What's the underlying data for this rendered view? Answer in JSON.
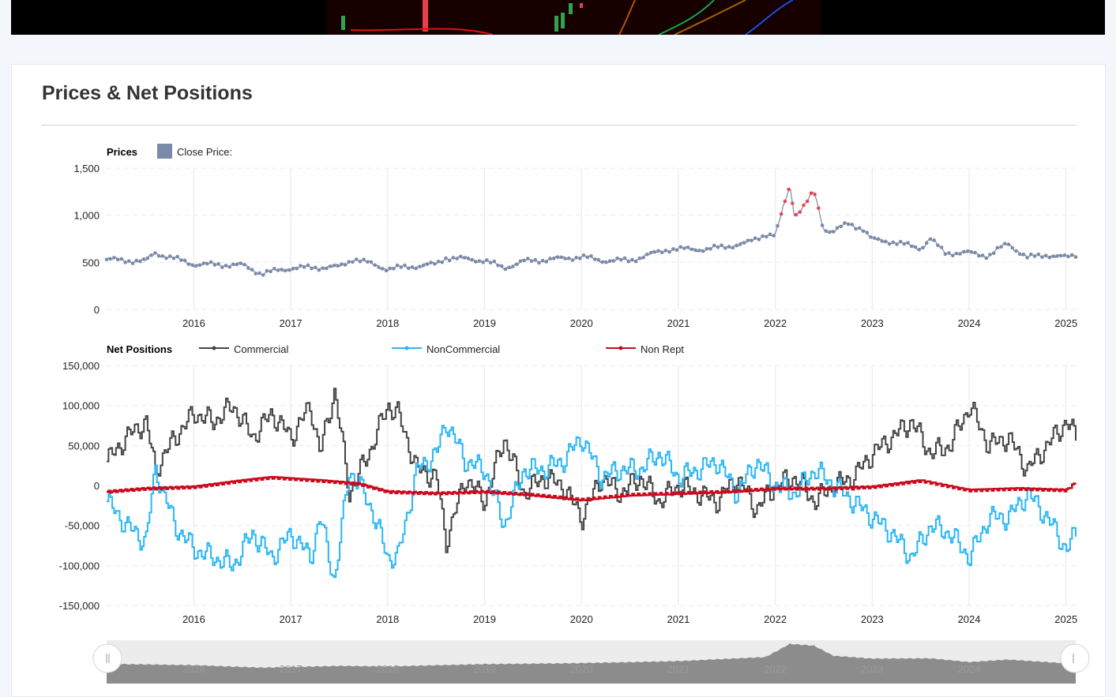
{
  "page": {
    "title": "Prices & Net Positions"
  },
  "colors": {
    "price": "#7b8aa8",
    "price_spike": "#e8474f",
    "commercial": "#444444",
    "noncommercial": "#29b6f6",
    "nonrept": "#cc0a1e",
    "grid": "#ebebeb",
    "navigator_fill": "#8c8c8c"
  },
  "chart_data": [
    {
      "type": "line",
      "title": "Prices",
      "legend": [
        "Close Price:"
      ],
      "legend_position": "top-left",
      "x_ticks": [
        "2016",
        "2017",
        "2018",
        "2019",
        "2020",
        "2021",
        "2022",
        "2023",
        "2024",
        "2025"
      ],
      "y_ticks": [
        "1,500",
        "1,000",
        "500",
        "0"
      ],
      "ylim": [
        0,
        1500
      ],
      "xlim": [
        2015.1,
        2025.1
      ],
      "grid": true,
      "series": [
        {
          "name": "Close Price:",
          "x": [
            2015.1,
            2015.5,
            2015.6,
            2016.0,
            2016.5,
            2016.7,
            2017.0,
            2017.5,
            2017.65,
            2018.0,
            2018.5,
            2018.6,
            2019.0,
            2019.2,
            2019.4,
            2019.8,
            2020.0,
            2020.2,
            2020.5,
            2020.9,
            2021.0,
            2021.3,
            2021.7,
            2021.9,
            2022.0,
            2022.15,
            2022.2,
            2022.3,
            2022.4,
            2022.5,
            2022.6,
            2022.75,
            2022.9,
            2023.0,
            2023.2,
            2023.5,
            2023.6,
            2023.75,
            2024.0,
            2024.2,
            2024.4,
            2024.6,
            2024.8,
            2025.0,
            2025.1
          ],
          "values": [
            530,
            510,
            600,
            480,
            470,
            380,
            440,
            450,
            540,
            430,
            480,
            550,
            520,
            440,
            510,
            540,
            560,
            520,
            520,
            640,
            640,
            640,
            700,
            800,
            780,
            1320,
            1000,
            1100,
            1250,
            850,
            830,
            910,
            860,
            740,
            720,
            650,
            750,
            600,
            600,
            570,
            700,
            550,
            580,
            550,
            580
          ]
        }
      ]
    },
    {
      "type": "line",
      "title": "Net Positions",
      "legend": [
        "Commercial",
        "NonCommercial",
        "Non Rept"
      ],
      "legend_position": "top-left",
      "x_ticks": [
        "2016",
        "2017",
        "2018",
        "2019",
        "2020",
        "2021",
        "2022",
        "2023",
        "2024",
        "2025"
      ],
      "y_ticks": [
        "150,000",
        "100,000",
        "50,000",
        "0",
        "-50,000",
        "-100,000",
        "-150,000"
      ],
      "ylim": [
        -150000,
        150000
      ],
      "xlim": [
        2015.1,
        2025.1
      ],
      "grid": true,
      "series": [
        {
          "name": "Commercial",
          "x": [
            2015.1,
            2015.3,
            2015.5,
            2015.6,
            2015.8,
            2016.0,
            2016.2,
            2016.4,
            2016.6,
            2016.8,
            2017.0,
            2017.2,
            2017.3,
            2017.45,
            2017.6,
            2017.8,
            2018.0,
            2018.1,
            2018.3,
            2018.5,
            2018.6,
            2018.8,
            2019.0,
            2019.2,
            2019.4,
            2019.6,
            2019.8,
            2020.0,
            2020.2,
            2020.4,
            2020.6,
            2020.8,
            2021.0,
            2021.2,
            2021.4,
            2021.6,
            2021.8,
            2022.0,
            2022.2,
            2022.4,
            2022.6,
            2022.8,
            2023.0,
            2023.2,
            2023.4,
            2023.6,
            2023.8,
            2024.0,
            2024.2,
            2024.4,
            2024.6,
            2024.8,
            2025.0,
            2025.1
          ],
          "values": [
            30000,
            60000,
            80000,
            20000,
            60000,
            90000,
            80000,
            100000,
            60000,
            90000,
            60000,
            100000,
            40000,
            120000,
            -10000,
            40000,
            100000,
            90000,
            20000,
            10000,
            -70000,
            10000,
            -20000,
            60000,
            -10000,
            10000,
            0,
            -40000,
            10000,
            -10000,
            10000,
            -20000,
            0,
            -10000,
            -20000,
            10000,
            -30000,
            0,
            10000,
            -20000,
            0,
            10000,
            40000,
            60000,
            80000,
            40000,
            50000,
            100000,
            50000,
            60000,
            20000,
            50000,
            80000,
            60000
          ]
        },
        {
          "name": "NonCommercial",
          "x": [
            2015.1,
            2015.3,
            2015.5,
            2015.6,
            2015.8,
            2016.0,
            2016.2,
            2016.4,
            2016.6,
            2016.8,
            2017.0,
            2017.2,
            2017.3,
            2017.45,
            2017.6,
            2017.8,
            2018.0,
            2018.1,
            2018.3,
            2018.5,
            2018.6,
            2018.8,
            2019.0,
            2019.2,
            2019.4,
            2019.6,
            2019.8,
            2020.0,
            2020.2,
            2020.4,
            2020.6,
            2020.8,
            2021.0,
            2021.2,
            2021.4,
            2021.6,
            2021.8,
            2022.0,
            2022.2,
            2022.4,
            2022.6,
            2022.8,
            2023.0,
            2023.2,
            2023.4,
            2023.6,
            2023.8,
            2024.0,
            2024.2,
            2024.4,
            2024.6,
            2024.8,
            2025.0,
            2025.1
          ],
          "values": [
            -20000,
            -50000,
            -70000,
            20000,
            -50000,
            -80000,
            -90000,
            -100000,
            -60000,
            -90000,
            -60000,
            -90000,
            -40000,
            -120000,
            20000,
            -20000,
            -90000,
            -90000,
            20000,
            40000,
            80000,
            30000,
            20000,
            -50000,
            20000,
            20000,
            30000,
            60000,
            10000,
            20000,
            20000,
            40000,
            10000,
            20000,
            30000,
            -10000,
            30000,
            0,
            -10000,
            20000,
            0,
            -20000,
            -40000,
            -60000,
            -90000,
            -50000,
            -60000,
            -90000,
            -40000,
            -40000,
            -10000,
            -40000,
            -80000,
            -60000
          ]
        },
        {
          "name": "Non Rept",
          "x": [
            2015.1,
            2015.5,
            2016.0,
            2016.5,
            2016.8,
            2017.3,
            2017.7,
            2018.0,
            2018.5,
            2019.0,
            2019.5,
            2020.0,
            2020.5,
            2021.0,
            2021.5,
            2022.0,
            2022.5,
            2023.0,
            2023.5,
            2024.0,
            2024.5,
            2025.0,
            2025.1
          ],
          "values": [
            -8000,
            -4000,
            -2000,
            6000,
            10000,
            6000,
            2000,
            -8000,
            -10000,
            -8000,
            -12000,
            -18000,
            -12000,
            -10000,
            -8000,
            -4000,
            -4000,
            -2000,
            6000,
            -6000,
            -4000,
            -6000,
            4000
          ]
        }
      ]
    },
    {
      "type": "area",
      "title": "",
      "x_ticks": [
        "2016",
        "2017",
        "2018",
        "2019",
        "2020",
        "2021",
        "2022",
        "2023",
        "2024"
      ],
      "series": [
        {
          "x": [
            2015.1,
            2016.0,
            2016.7,
            2017.5,
            2018.0,
            2019.0,
            2020.0,
            2021.0,
            2021.9,
            2022.15,
            2022.4,
            2022.6,
            2023.0,
            2023.6,
            2024.0,
            2024.4,
            2025.0,
            2025.1
          ],
          "values": [
            530,
            480,
            380,
            450,
            430,
            520,
            560,
            640,
            800,
            1320,
            1250,
            850,
            740,
            750,
            600,
            700,
            550,
            580
          ]
        }
      ]
    }
  ]
}
